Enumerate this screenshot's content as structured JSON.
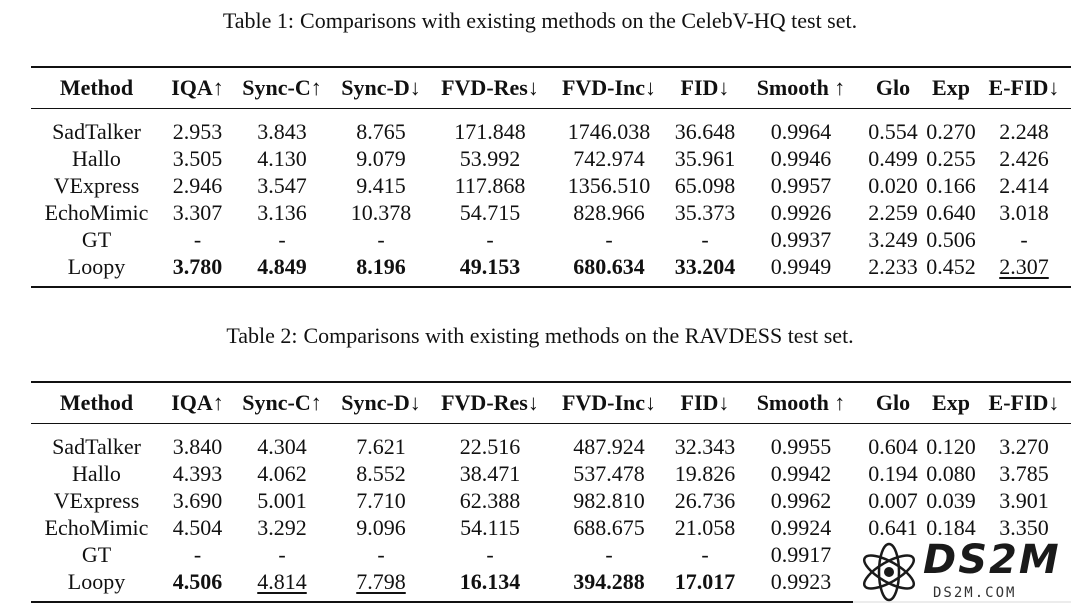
{
  "table1": {
    "caption_label": "Table 1:",
    "caption_text": "Comparisons with existing methods on the CelebV-HQ test set.",
    "headers": [
      "Method",
      "IQA↑",
      "Sync-C↑",
      "Sync-D↓",
      "FVD-Res↓",
      "FVD-Inc↓",
      "FID↓",
      "Smooth ↑",
      "Glo",
      "Exp",
      "E-FID↓"
    ],
    "rows": [
      {
        "cells": [
          "SadTalker",
          "2.953",
          "3.843",
          "8.765",
          "171.848",
          "1746.038",
          "36.648",
          "0.9964",
          "0.554",
          "0.270",
          "2.248"
        ],
        "bold": [],
        "underline": []
      },
      {
        "cells": [
          "Hallo",
          "3.505",
          "4.130",
          "9.079",
          "53.992",
          "742.974",
          "35.961",
          "0.9946",
          "0.499",
          "0.255",
          "2.426"
        ],
        "bold": [],
        "underline": []
      },
      {
        "cells": [
          "VExpress",
          "2.946",
          "3.547",
          "9.415",
          "117.868",
          "1356.510",
          "65.098",
          "0.9957",
          "0.020",
          "0.166",
          "2.414"
        ],
        "bold": [],
        "underline": []
      },
      {
        "cells": [
          "EchoMimic",
          "3.307",
          "3.136",
          "10.378",
          "54.715",
          "828.966",
          "35.373",
          "0.9926",
          "2.259",
          "0.640",
          "3.018"
        ],
        "bold": [],
        "underline": []
      },
      {
        "cells": [
          "GT",
          "-",
          "-",
          "-",
          "-",
          "-",
          "-",
          "0.9937",
          "3.249",
          "0.506",
          "-"
        ],
        "bold": [],
        "underline": []
      },
      {
        "cells": [
          "Loopy",
          "3.780",
          "4.849",
          "8.196",
          "49.153",
          "680.634",
          "33.204",
          "0.9949",
          "2.233",
          "0.452",
          "2.307"
        ],
        "bold": [
          1,
          2,
          3,
          4,
          5,
          6
        ],
        "underline": [
          10
        ]
      }
    ]
  },
  "table2": {
    "caption_label": "Table 2:",
    "caption_text": "Comparisons with existing methods on the RAVDESS test set.",
    "headers": [
      "Method",
      "IQA↑",
      "Sync-C↑",
      "Sync-D↓",
      "FVD-Res↓",
      "FVD-Inc↓",
      "FID↓",
      "Smooth ↑",
      "Glo",
      "Exp",
      "E-FID↓"
    ],
    "rows": [
      {
        "cells": [
          "SadTalker",
          "3.840",
          "4.304",
          "7.621",
          "22.516",
          "487.924",
          "32.343",
          "0.9955",
          "0.604",
          "0.120",
          "3.270"
        ],
        "bold": [],
        "underline": []
      },
      {
        "cells": [
          "Hallo",
          "4.393",
          "4.062",
          "8.552",
          "38.471",
          "537.478",
          "19.826",
          "0.9942",
          "0.194",
          "0.080",
          "3.785"
        ],
        "bold": [],
        "underline": []
      },
      {
        "cells": [
          "VExpress",
          "3.690",
          "5.001",
          "7.710",
          "62.388",
          "982.810",
          "26.736",
          "0.9962",
          "0.007",
          "0.039",
          "3.901"
        ],
        "bold": [],
        "underline": []
      },
      {
        "cells": [
          "EchoMimic",
          "4.504",
          "3.292",
          "9.096",
          "54.115",
          "688.675",
          "21.058",
          "0.9924",
          "0.641",
          "0.184",
          "3.350"
        ],
        "bold": [],
        "underline": []
      },
      {
        "cells": [
          "GT",
          "-",
          "-",
          "-",
          "-",
          "-",
          "-",
          "0.9917",
          "",
          "",
          ""
        ],
        "bold": [],
        "underline": []
      },
      {
        "cells": [
          "Loopy",
          "4.506",
          "4.814",
          "7.798",
          "16.134",
          "394.288",
          "17.017",
          "0.9923",
          "",
          "",
          ""
        ],
        "bold": [
          1,
          4,
          5,
          6
        ],
        "underline": [
          2,
          3
        ]
      }
    ]
  },
  "watermark": {
    "logo_text": "DS2M",
    "sub_text": "DS2M.COM",
    "icon": "atom-icon"
  }
}
